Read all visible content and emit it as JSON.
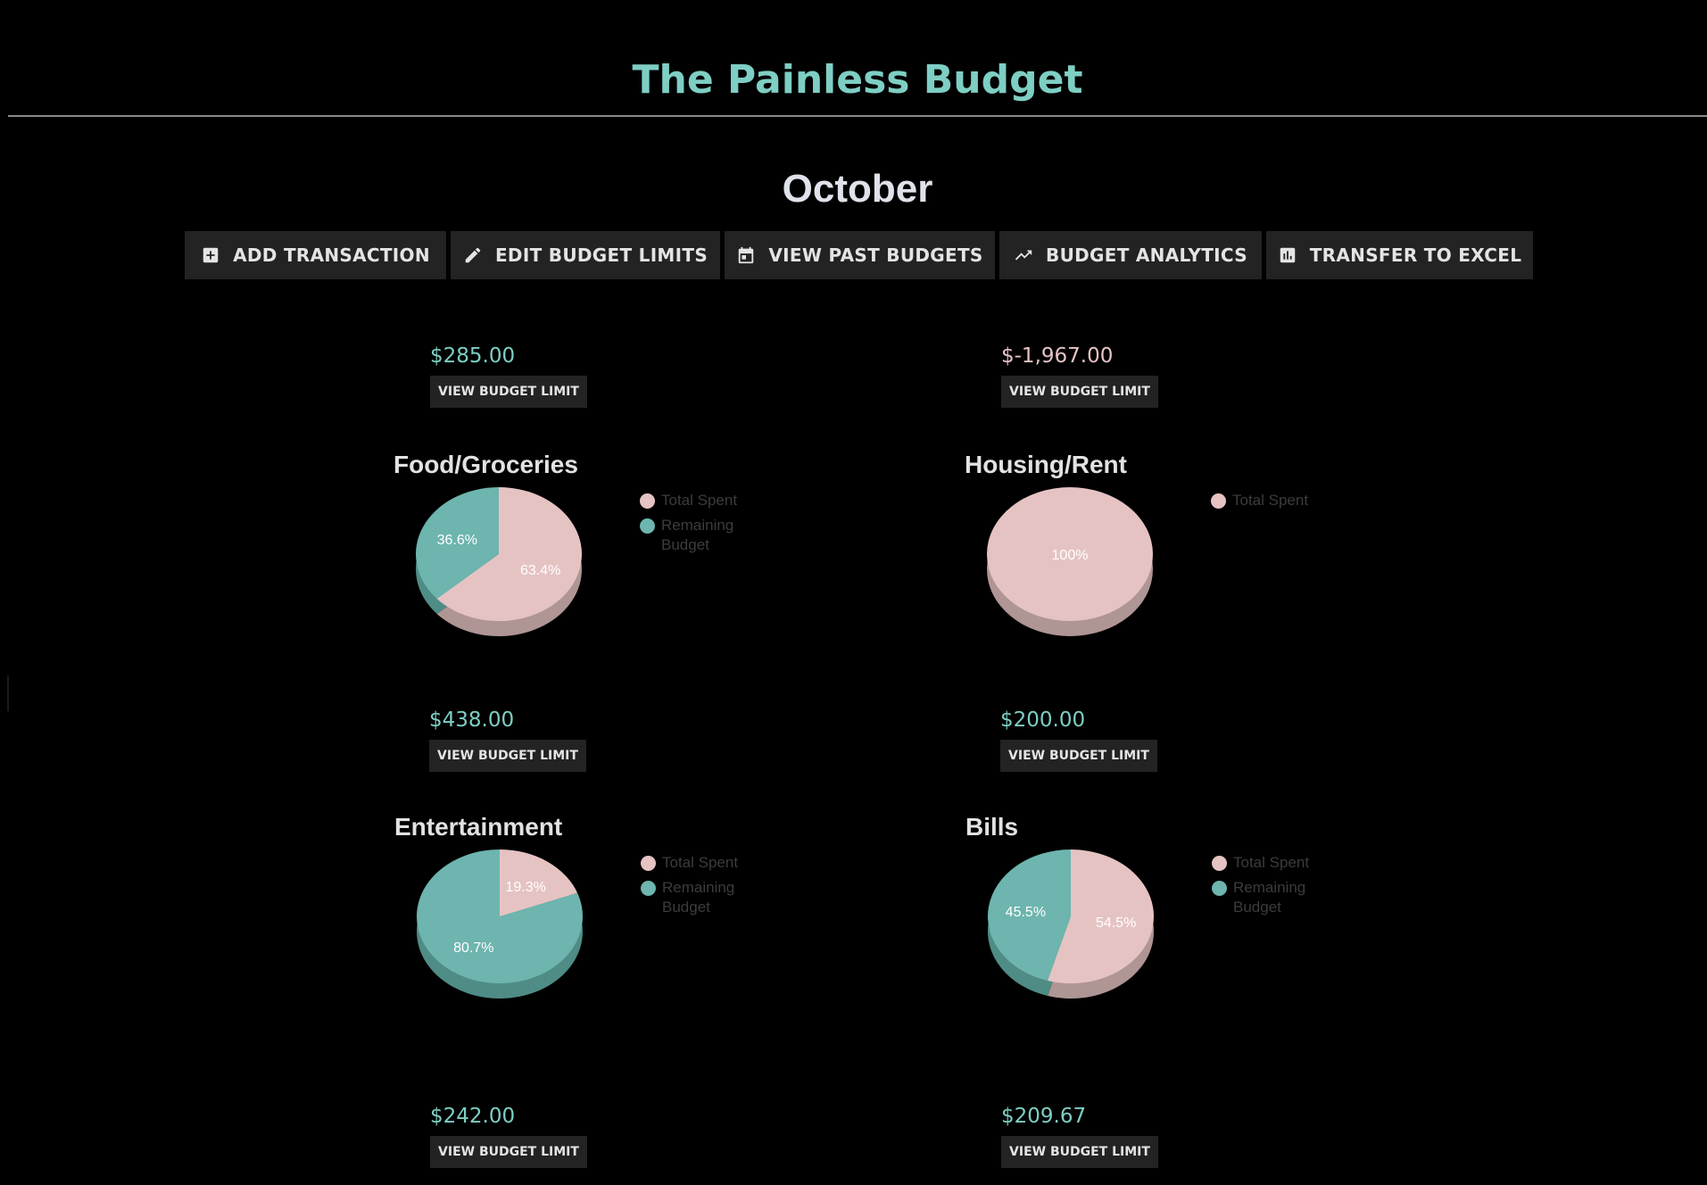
{
  "app": {
    "title": "The Painless Budget",
    "month": "October"
  },
  "toolbar": {
    "buttons": [
      {
        "label": "ADD TRANSACTION",
        "icon": "add-box-icon"
      },
      {
        "label": "EDIT BUDGET LIMITS",
        "icon": "pencil-icon"
      },
      {
        "label": "VIEW PAST BUDGETS",
        "icon": "calendar-icon"
      },
      {
        "label": "BUDGET ANALYTICS",
        "icon": "trending-up-icon"
      },
      {
        "label": "TRANSFER TO EXCEL",
        "icon": "bar-chart-icon"
      }
    ]
  },
  "view_limit_label": "VIEW BUDGET LIMIT",
  "colors": {
    "accent": "#7ecec4",
    "total_spent": "#e6c3c3",
    "remaining": "#6db5ae",
    "button_bg": "#232323"
  },
  "legend": {
    "total_spent": "Total Spent",
    "remaining": "Remaining Budget"
  },
  "top_row": {
    "left_amount": "$285.00",
    "right_amount": "$-1,967.00"
  },
  "categories": [
    {
      "name": "Food/Groceries",
      "remaining_amount": "$438.00"
    },
    {
      "name": "Housing/Rent",
      "remaining_amount": "$200.00"
    },
    {
      "name": "Entertainment",
      "remaining_amount": "$242.00"
    },
    {
      "name": "Bills",
      "remaining_amount": "$209.67"
    }
  ],
  "chart_data": [
    {
      "type": "pie",
      "title": "Food/Groceries",
      "categories": [
        "Total Spent",
        "Remaining Budget"
      ],
      "values": [
        63.4,
        36.6
      ],
      "labels": [
        "63.4%",
        "36.6%"
      ]
    },
    {
      "type": "pie",
      "title": "Housing/Rent",
      "categories": [
        "Total Spent"
      ],
      "values": [
        100
      ],
      "labels": [
        "100%"
      ]
    },
    {
      "type": "pie",
      "title": "Entertainment",
      "categories": [
        "Total Spent",
        "Remaining Budget"
      ],
      "values": [
        19.3,
        80.7
      ],
      "labels": [
        "19.3%",
        "80.7%"
      ]
    },
    {
      "type": "pie",
      "title": "Bills",
      "categories": [
        "Total Spent",
        "Remaining Budget"
      ],
      "values": [
        54.5,
        45.5
      ],
      "labels": [
        "54.5%",
        "45.5%"
      ]
    }
  ]
}
